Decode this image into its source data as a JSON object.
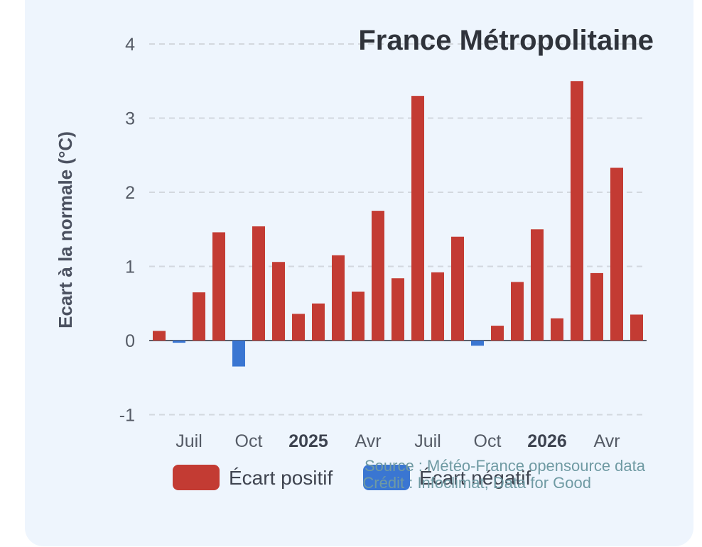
{
  "chart_data": {
    "type": "bar",
    "title": "France Métropolitaine",
    "ylabel": "Ecart à la normale (°C)",
    "xlabel": "",
    "ylim": [
      -1.2,
      4
    ],
    "yticks": [
      -1,
      0,
      1,
      2,
      3,
      4
    ],
    "grid": true,
    "legend_position": "bottom",
    "x_tick_labels": [
      {
        "label": "Juil",
        "index": 2,
        "bold": false
      },
      {
        "label": "Oct",
        "index": 5,
        "bold": false
      },
      {
        "label": "2025",
        "index": 8,
        "bold": true
      },
      {
        "label": "Avr",
        "index": 11,
        "bold": false
      },
      {
        "label": "Juil",
        "index": 14,
        "bold": false
      },
      {
        "label": "Oct",
        "index": 17,
        "bold": false
      },
      {
        "label": "2026",
        "index": 20,
        "bold": true
      },
      {
        "label": "Avr",
        "index": 23,
        "bold": false
      }
    ],
    "values": [
      0.13,
      -0.03,
      0.65,
      1.46,
      -0.35,
      1.54,
      1.06,
      0.36,
      0.5,
      1.15,
      0.66,
      1.75,
      0.84,
      3.3,
      0.92,
      1.4,
      -0.07,
      0.2,
      0.79,
      1.5,
      0.3,
      3.5,
      0.91,
      2.33,
      0.35
    ],
    "series": [
      {
        "name": "Écart positif",
        "color": "#c33b33"
      },
      {
        "name": "Écart négatif",
        "color": "#3a76d2"
      }
    ]
  },
  "source_lines": [
    "Source : Météo-France opensource data",
    "Crédit : Infoclimat, Data for Good"
  ]
}
